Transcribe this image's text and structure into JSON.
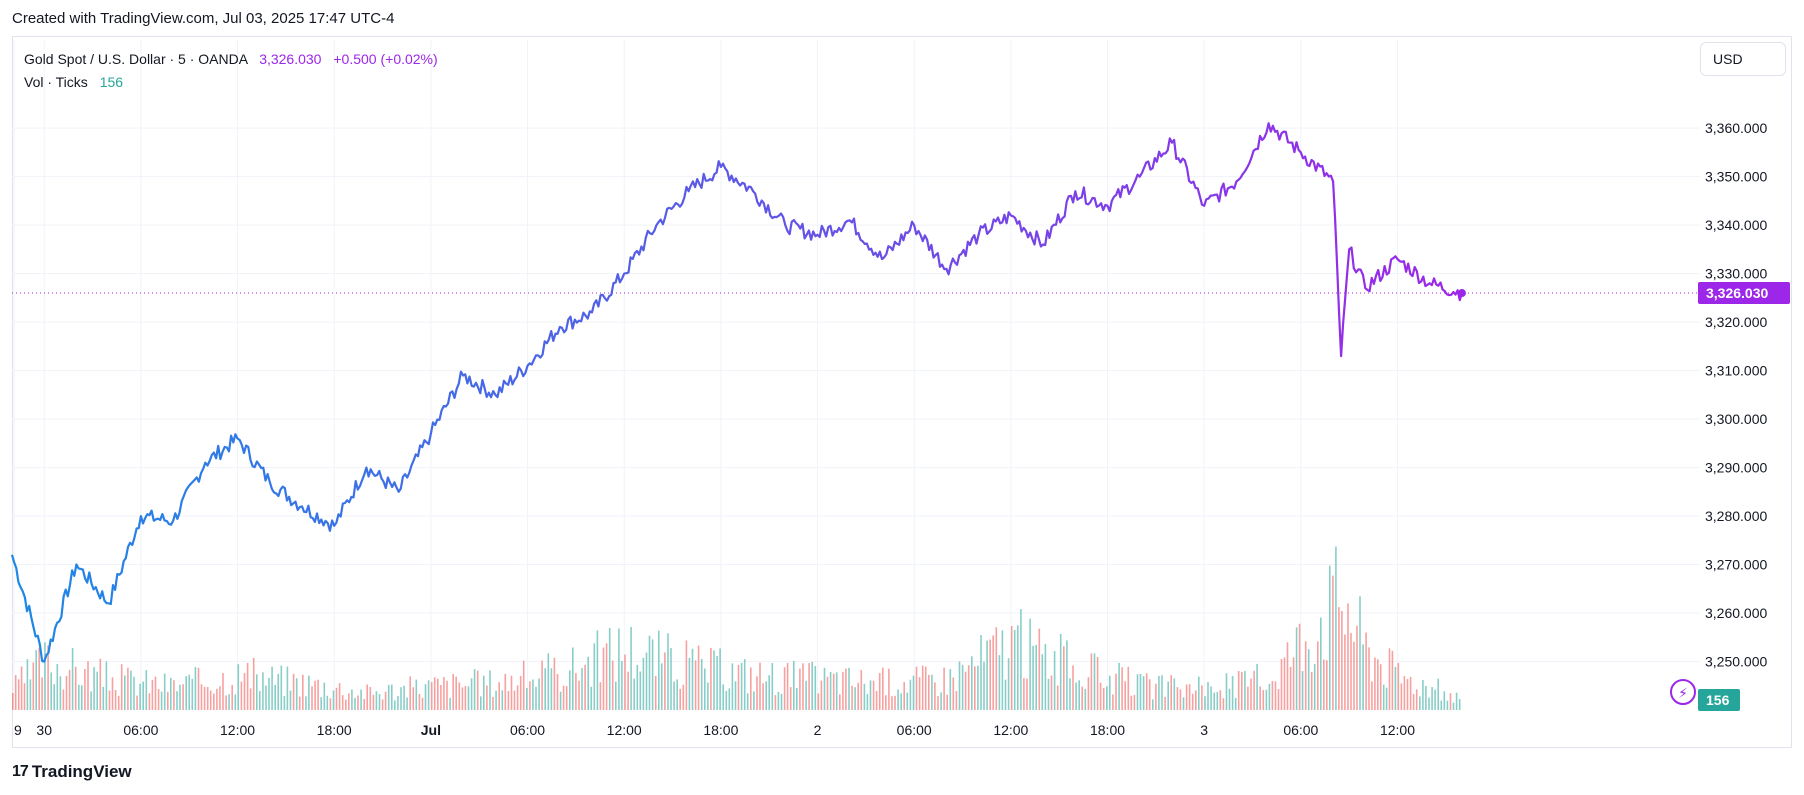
{
  "caption": "Created with TradingView.com, Jul 03, 2025 17:47 UTC-4",
  "legend": {
    "symbol": "Gold Spot / U.S. Dollar · 5 · OANDA",
    "price": "3,326.030",
    "change": "+0.500 (+0.02%)",
    "volume_label": "Vol · Ticks",
    "volume_value": "156"
  },
  "currency_button": "USD",
  "brand": "TradingView",
  "brand_logo": "17",
  "colors": {
    "line_start": "#1e88e5",
    "line_end": "#9c27e8",
    "vol_up": "#26a69a",
    "vol_down": "#ef5350",
    "price_tag": "#9c27e8",
    "vol_tag": "#26a69a"
  },
  "icons": {
    "alert": "lightning-icon"
  },
  "chart_data": {
    "type": "line",
    "series": [
      {
        "name": "Gold Spot / U.S. Dollar",
        "x": [
          "Jun 29 22:00",
          "Jun 30 00:00",
          "Jun 30 02:00",
          "Jun 30 04:00",
          "Jun 30 06:00",
          "Jun 30 08:00",
          "Jun 30 10:00",
          "Jun 30 12:00",
          "Jun 30 14:00",
          "Jun 30 16:00",
          "Jun 30 18:00",
          "Jun 30 20:00",
          "Jun 30 22:00",
          "Jul 01 00:00",
          "Jul 01 02:00",
          "Jul 01 04:00",
          "Jul 01 06:00",
          "Jul 01 08:00",
          "Jul 01 10:00",
          "Jul 01 12:00",
          "Jul 01 14:00",
          "Jul 01 16:00",
          "Jul 01 18:00",
          "Jul 01 20:00",
          "Jul 01 22:00",
          "Jul 02 00:00",
          "Jul 02 02:00",
          "Jul 02 04:00",
          "Jul 02 06:00",
          "Jul 02 08:00",
          "Jul 02 10:00",
          "Jul 02 12:00",
          "Jul 02 14:00",
          "Jul 02 16:00",
          "Jul 02 18:00",
          "Jul 02 20:00",
          "Jul 02 22:00",
          "Jul 03 00:00",
          "Jul 03 02:00",
          "Jul 03 04:00",
          "Jul 03 06:00",
          "Jul 03 08:00",
          "Jul 03 08:30",
          "Jul 03 09:00",
          "Jul 03 10:00",
          "Jul 03 12:00",
          "Jul 03 14:00",
          "Jul 03 16:00"
        ],
        "values": [
          3272,
          3250,
          3270,
          3262,
          3280,
          3279,
          3291,
          3296,
          3287,
          3282,
          3278,
          3290,
          3285,
          3297,
          3309,
          3305,
          3311,
          3319,
          3322,
          3330,
          3340,
          3347,
          3352,
          3347,
          3340,
          3338,
          3341,
          3333,
          3340,
          3331,
          3338,
          3342,
          3336,
          3347,
          3344,
          3350,
          3357,
          3344,
          3349,
          3361,
          3355,
          3349,
          3313,
          3335,
          3327,
          3333,
          3328,
          3326
        ]
      }
    ],
    "volume": {
      "name": "Vol · Ticks",
      "x": [
        "Jun 29 22:00",
        "Jun 30 00:00",
        "Jun 30 04:00",
        "Jun 30 08:00",
        "Jun 30 12:00",
        "Jun 30 16:00",
        "Jun 30 20:00",
        "Jul 01 00:00",
        "Jul 01 04:00",
        "Jul 01 08:00",
        "Jul 01 12:00",
        "Jul 01 16:00",
        "Jul 01 20:00",
        "Jul 02 00:00",
        "Jul 02 04:00",
        "Jul 02 08:00",
        "Jul 02 12:00",
        "Jul 02 16:00",
        "Jul 02 20:00",
        "Jul 03 00:00",
        "Jul 03 04:00",
        "Jul 03 08:30",
        "Jul 03 10:00",
        "Jul 03 12:00",
        "Jul 03 16:00"
      ],
      "values": [
        300,
        700,
        450,
        350,
        500,
        400,
        250,
        350,
        400,
        550,
        900,
        650,
        500,
        450,
        400,
        450,
        1000,
        600,
        350,
        300,
        450,
        1700,
        900,
        500,
        156
      ]
    },
    "ylim": [
      3240,
      3372
    ],
    "yticks": [
      "3,250.000",
      "3,260.000",
      "3,270.000",
      "3,280.000",
      "3,290.000",
      "3,300.000",
      "3,310.000",
      "3,320.000",
      "3,330.000",
      "3,340.000",
      "3,350.000",
      "3,360.000"
    ],
    "xticks": [
      "9",
      "30",
      "06:00",
      "12:00",
      "18:00",
      "Jul",
      "06:00",
      "12:00",
      "18:00",
      "2",
      "06:00",
      "12:00",
      "18:00",
      "3",
      "06:00",
      "12:00"
    ],
    "last_price_label": "3,326.030",
    "last_volume_label": "156",
    "grid": true,
    "legend": "top-left"
  }
}
